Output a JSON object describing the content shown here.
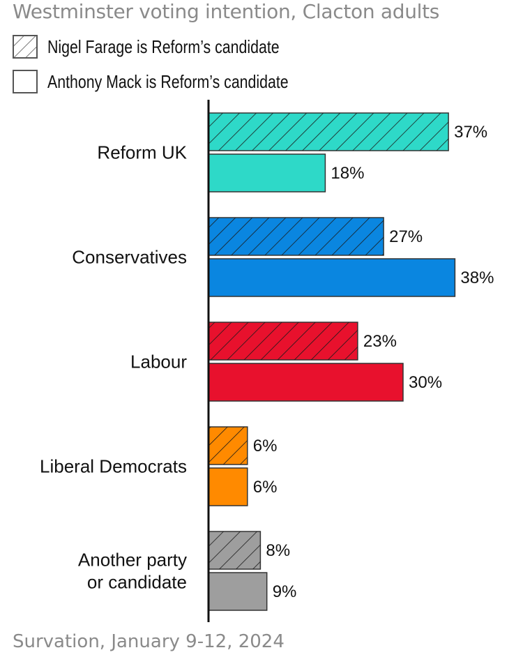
{
  "title": "Westminster voting intention, Clacton adults",
  "source": "Survation, January 9-12, 2024",
  "legend": [
    {
      "label": "Nigel Farage is Reform’s candidate",
      "pattern": "hatched"
    },
    {
      "label": "Anthony Mack is Reform’s candidate",
      "pattern": "solid"
    }
  ],
  "chart_data": {
    "type": "bar",
    "orientation": "horizontal",
    "categories": [
      {
        "lines": [
          "Reform UK"
        ],
        "color": "#2ed9c8"
      },
      {
        "lines": [
          "Conservatives"
        ],
        "color": "#0a86e0"
      },
      {
        "lines": [
          "Labour"
        ],
        "color": "#e8112d"
      },
      {
        "lines": [
          "Liberal Democrats"
        ],
        "color": "#ff8a00"
      },
      {
        "lines": [
          "Another party",
          "or candidate"
        ],
        "color": "#9e9e9e"
      }
    ],
    "series": [
      {
        "name": "Nigel Farage is Reform’s candidate",
        "pattern": "hatched",
        "values": [
          37,
          27,
          23,
          6,
          8
        ],
        "labels": [
          "37%",
          "27%",
          "23%",
          "6%",
          "8%"
        ]
      },
      {
        "name": "Anthony Mack is Reform’s candidate",
        "pattern": "solid",
        "values": [
          18,
          38,
          30,
          6,
          9
        ],
        "labels": [
          "18%",
          "38%",
          "30%",
          "6%",
          "9%"
        ]
      }
    ],
    "xlim": [
      0,
      40
    ],
    "grid": false,
    "legend_position": "top-left"
  }
}
